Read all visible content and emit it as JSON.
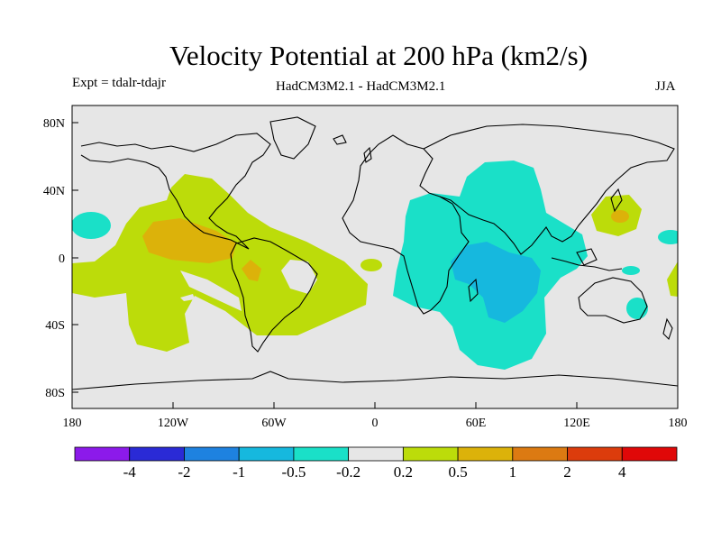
{
  "title": "Velocity Potential at 200 hPa (km2/s)",
  "subtitle_left": "Expt = tdalr-tdajr",
  "subtitle_center": "HadCM3M2.1 - HadCM3M2.1",
  "subtitle_right": "JJA",
  "lat_ticks": [
    "80N",
    "40N",
    "0",
    "40S",
    "80S"
  ],
  "lon_ticks": [
    "180",
    "120W",
    "60W",
    "0",
    "60E",
    "120E",
    "180"
  ],
  "colorbar": {
    "colors": [
      "#8c1aea",
      "#2a2ad6",
      "#1e82e0",
      "#16b8de",
      "#1ae0c8",
      "#e6e6e6",
      "#bcdc0a",
      "#dcb20a",
      "#dc7a12",
      "#dc3c0c",
      "#e00808"
    ],
    "labels": [
      "-4",
      "-2",
      "-1",
      "-0.5",
      "-0.2",
      "0.2",
      "0.5",
      "1",
      "2",
      "4"
    ]
  },
  "map_colors": {
    "background": "#e6e6e6",
    "neg_weak": "#1ae0c8",
    "neg_mid": "#16b8de",
    "pos_weak": "#bcdc0a",
    "pos_mid": "#dcb20a"
  }
}
